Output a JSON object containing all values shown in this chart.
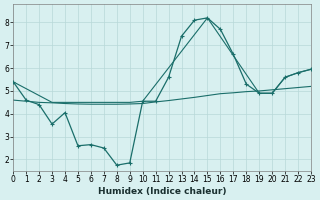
{
  "xlabel": "Humidex (Indice chaleur)",
  "bg_color": "#d8f0f0",
  "line_color": "#1a6e6a",
  "grid_color": "#b8d8d8",
  "xlim": [
    0,
    23
  ],
  "ylim": [
    1.5,
    8.8
  ],
  "xtick_vals": [
    0,
    1,
    2,
    3,
    4,
    5,
    6,
    7,
    8,
    9,
    10,
    11,
    12,
    13,
    14,
    15,
    16,
    17,
    18,
    19,
    20,
    21,
    22,
    23
  ],
  "ytick_vals": [
    2,
    3,
    4,
    5,
    6,
    7,
    8
  ],
  "line1_x": [
    0,
    1,
    2,
    3,
    4,
    5,
    6,
    7,
    8,
    9,
    10,
    11,
    12,
    13,
    14,
    15,
    16,
    17,
    18,
    19,
    20,
    21,
    22,
    23
  ],
  "line1_y": [
    5.4,
    4.6,
    4.4,
    3.55,
    4.05,
    2.6,
    2.65,
    2.5,
    1.75,
    1.85,
    4.55,
    4.55,
    5.6,
    7.4,
    8.1,
    8.2,
    7.7,
    6.6,
    5.3,
    4.9,
    4.9,
    5.6,
    5.8,
    5.95
  ],
  "line2_x": [
    0,
    1,
    2,
    3,
    4,
    5,
    6,
    7,
    8,
    9,
    10,
    11,
    12,
    13,
    14,
    15,
    16,
    17,
    18,
    19,
    20,
    21,
    22,
    23
  ],
  "line2_y": [
    4.6,
    4.55,
    4.5,
    4.48,
    4.45,
    4.43,
    4.42,
    4.42,
    4.42,
    4.43,
    4.45,
    4.52,
    4.58,
    4.65,
    4.72,
    4.8,
    4.88,
    4.92,
    4.97,
    5.0,
    5.05,
    5.1,
    5.15,
    5.2
  ],
  "line3_x": [
    0,
    3,
    9,
    10,
    15,
    19,
    20,
    21,
    22,
    23
  ],
  "line3_y": [
    5.4,
    4.5,
    4.5,
    4.55,
    8.2,
    4.9,
    4.9,
    5.6,
    5.8,
    5.95
  ]
}
